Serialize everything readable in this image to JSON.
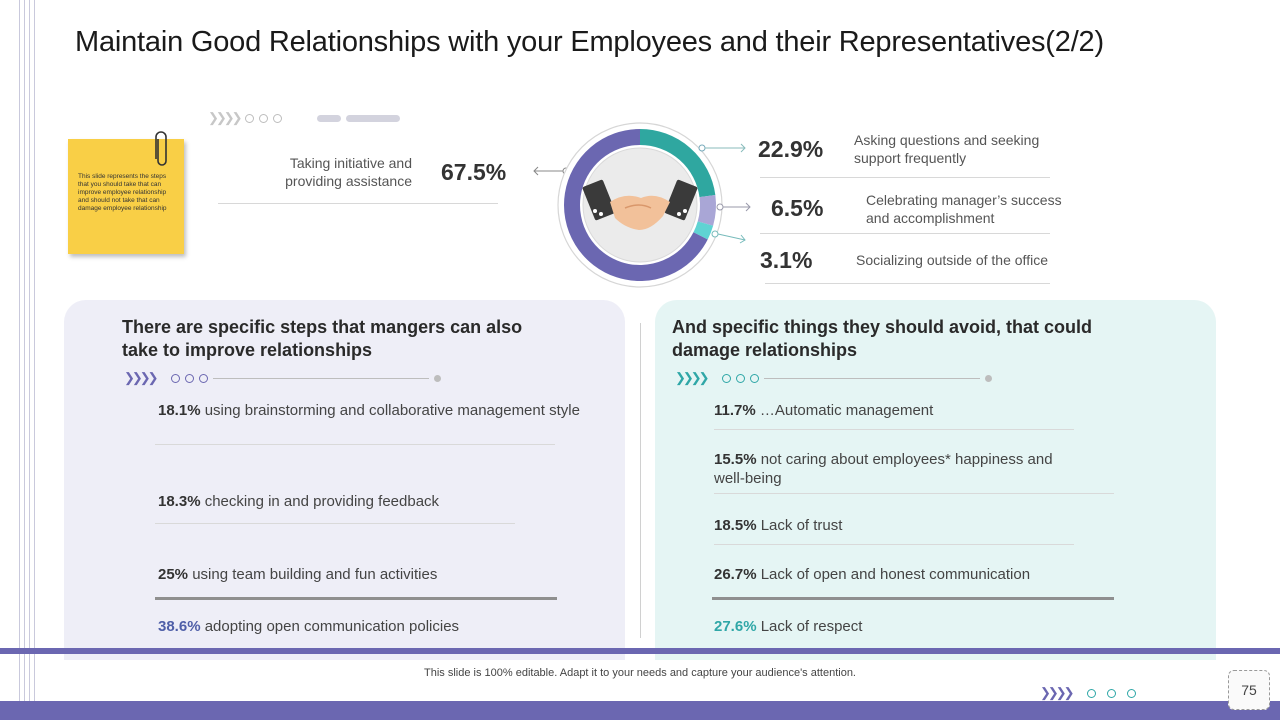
{
  "slide": {
    "title": "Maintain Good Relationships with your Employees and their Representatives(2/2)",
    "sticky_note": "This slide represents the steps that you should take that can improve employee relationship and should not take that can damage employee relationship",
    "footer": "This slide is 100% editable. Adapt it to your needs and capture your audience's attention.",
    "page_number": "75"
  },
  "donut": {
    "center_icon": "handshake-icon",
    "colors": {
      "main": "#6b67b1",
      "teal": "#2fa7a0",
      "lavender": "#a9a6d6",
      "aqua": "#5fd3d3"
    },
    "segments": [
      {
        "label": "Taking initiative and providing assistance",
        "percent": 67.5
      },
      {
        "label": "Asking questions and seeking support frequently",
        "percent": 22.9
      },
      {
        "label": "Celebrating manager's success and accomplishment",
        "percent": 6.5
      },
      {
        "label": "Socializing outside of the office",
        "percent": 3.1
      }
    ]
  },
  "stats": {
    "left": {
      "value": "67.5%",
      "label": "Taking initiative and providing assistance"
    },
    "right": [
      {
        "value": "22.9%",
        "label": "Asking questions and seeking support frequently"
      },
      {
        "value": "6.5%",
        "label": "Celebrating manager’s success and accomplishment"
      },
      {
        "value": "3.1%",
        "label": "Socializing outside of the office"
      }
    ]
  },
  "left_panel": {
    "title": "There are specific steps that mangers can also take to improve relationships",
    "items": [
      {
        "pct": "18.1%",
        "text": "using brainstorming and collaborative management style"
      },
      {
        "pct": "18.3%",
        "text": "checking in and providing feedback"
      },
      {
        "pct": "25%",
        "text": "using team building and fun activities"
      },
      {
        "pct": "38.6%",
        "text": "adopting open communication policies"
      }
    ]
  },
  "right_panel": {
    "title": "And specific things they should avoid, that could damage relationships",
    "items": [
      {
        "pct": "11.7%",
        "text": "…Automatic management"
      },
      {
        "pct": "15.5%",
        "text": "not caring about employees* happiness and well-being"
      },
      {
        "pct": "18.5%",
        "text": "Lack of trust"
      },
      {
        "pct": "26.7%",
        "text": "Lack of open and honest communication"
      },
      {
        "pct": "27.6%",
        "text": "Lack of respect"
      }
    ]
  },
  "colors": {
    "accent": "#6b67b1",
    "teal": "#2fa7a7",
    "sticky": "#f9cf46"
  }
}
